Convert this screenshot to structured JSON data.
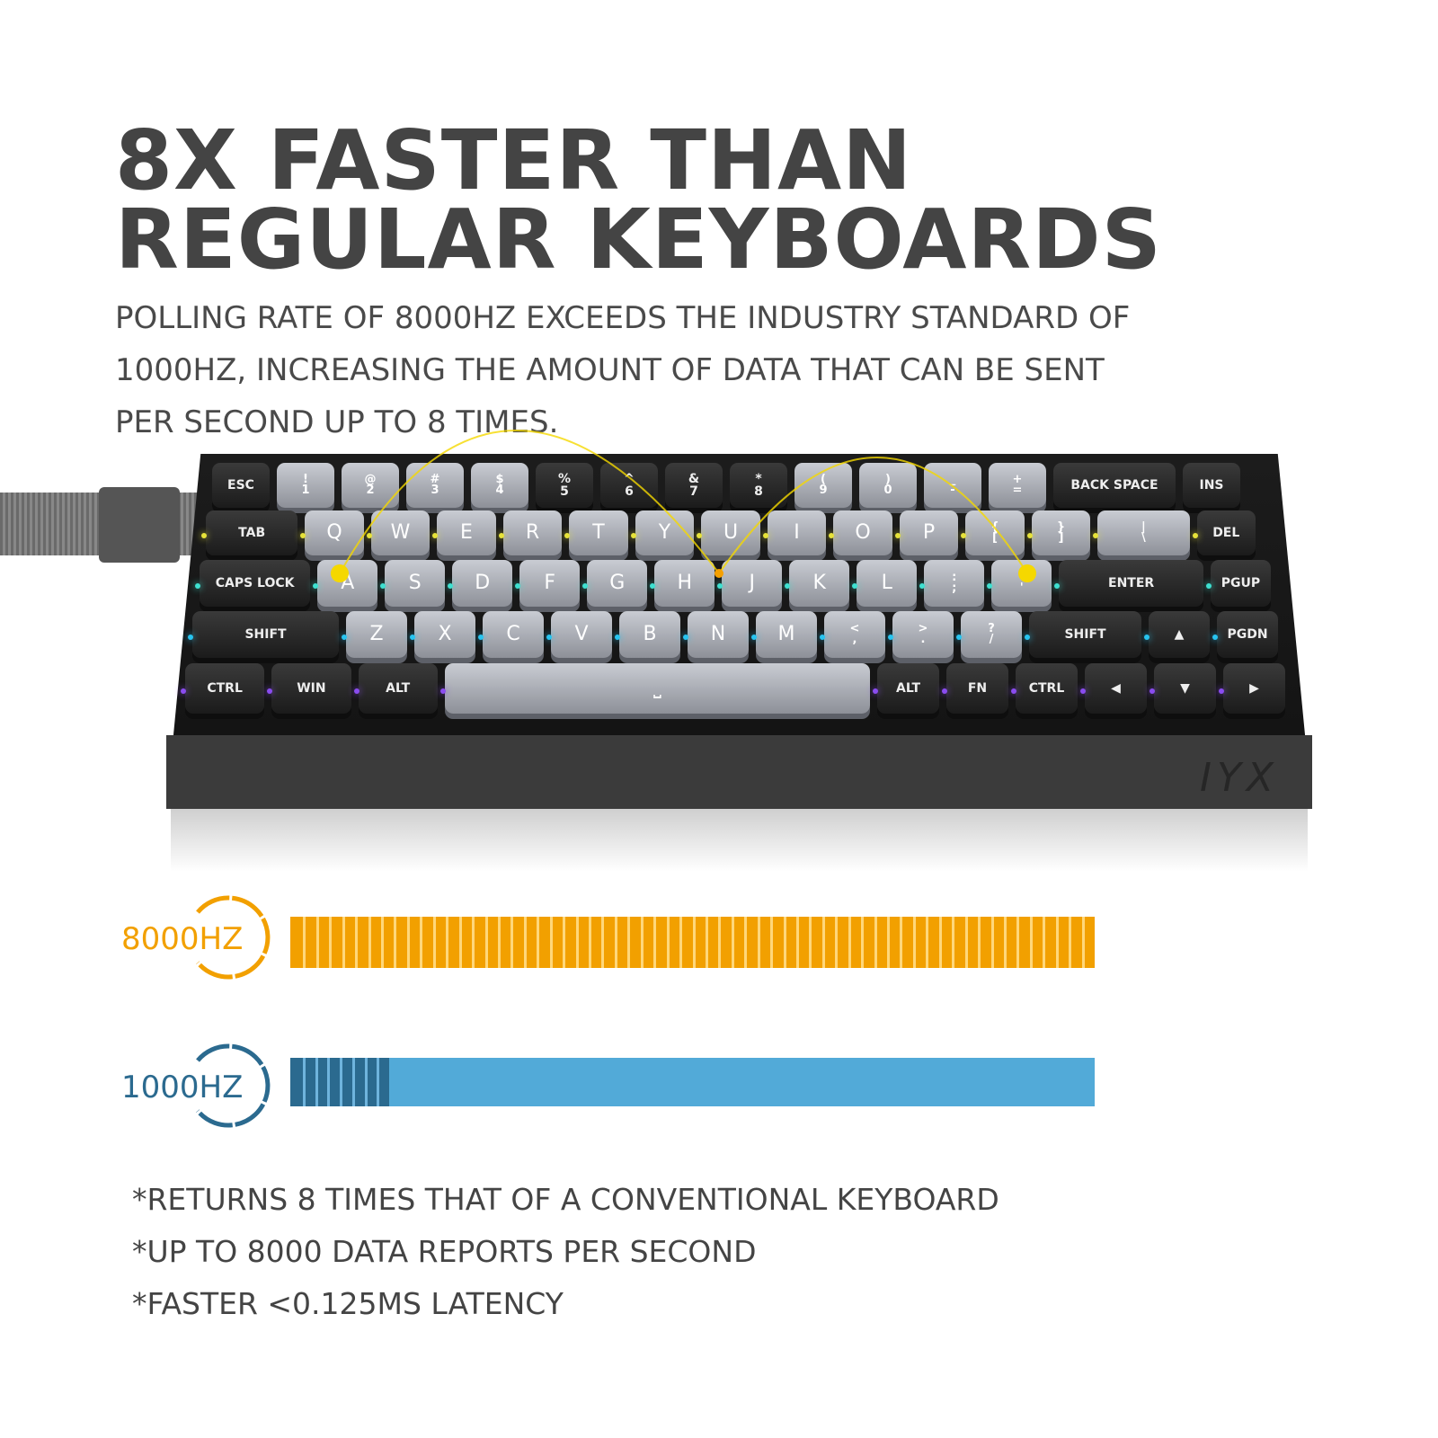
{
  "headline": {
    "line1": "8X FASTER THAN",
    "line2": "REGULAR KEYBOARDS"
  },
  "description": "POLLING RATE OF 8000HZ EXCEEDS THE INDUSTRY STANDARD OF 1000HZ, INCREASING THE AMOUNT OF DATA THAT CAN BE SENT PER SECOND UP TO 8 TIMES.",
  "keyboard": {
    "logo": "IYX",
    "rows": [
      [
        [
          "ESC",
          1,
          "dark"
        ],
        [
          "!\n1",
          1,
          "light"
        ],
        [
          "@\n2",
          1,
          "light"
        ],
        [
          "#\n3",
          1,
          "light"
        ],
        [
          "$\n4",
          1,
          "light"
        ],
        [
          "%\n5",
          1,
          "dark"
        ],
        [
          "^\n6",
          1,
          "dark"
        ],
        [
          "&\n7",
          1,
          "dark"
        ],
        [
          "*\n8",
          1,
          "dark"
        ],
        [
          "(\n9",
          1,
          "light"
        ],
        [
          ")\n0",
          1,
          "light"
        ],
        [
          "_\n-",
          1,
          "light"
        ],
        [
          "+\n=",
          1,
          "light"
        ],
        [
          "BACK SPACE",
          2,
          "dark"
        ],
        [
          "INS",
          1,
          "dark"
        ]
      ],
      [
        [
          "TAB",
          1.5,
          "dark"
        ],
        [
          "Q",
          1,
          "light"
        ],
        [
          "W",
          1,
          "light"
        ],
        [
          "E",
          1,
          "light"
        ],
        [
          "R",
          1,
          "light"
        ],
        [
          "T",
          1,
          "light"
        ],
        [
          "Y",
          1,
          "light"
        ],
        [
          "U",
          1,
          "light"
        ],
        [
          "I",
          1,
          "light"
        ],
        [
          "O",
          1,
          "light"
        ],
        [
          "P",
          1,
          "light"
        ],
        [
          "{\n[",
          1,
          "light"
        ],
        [
          "}\n]",
          1,
          "light"
        ],
        [
          "|\n\\",
          1.5,
          "light"
        ],
        [
          "DEL",
          1,
          "dark"
        ]
      ],
      [
        [
          "CAPS LOCK",
          1.75,
          "dark"
        ],
        [
          "A",
          1,
          "light"
        ],
        [
          "S",
          1,
          "light"
        ],
        [
          "D",
          1,
          "light"
        ],
        [
          "F",
          1,
          "light"
        ],
        [
          "G",
          1,
          "light"
        ],
        [
          "H",
          1,
          "light"
        ],
        [
          "J",
          1,
          "light"
        ],
        [
          "K",
          1,
          "light"
        ],
        [
          "L",
          1,
          "light"
        ],
        [
          ":\n;",
          1,
          "light"
        ],
        [
          "\"\n'",
          1,
          "light"
        ],
        [
          "ENTER",
          2.25,
          "dark"
        ],
        [
          "PGUP",
          1,
          "dark"
        ]
      ],
      [
        [
          "SHIFT",
          2.25,
          "dark"
        ],
        [
          "Z",
          1,
          "light"
        ],
        [
          "X",
          1,
          "light"
        ],
        [
          "C",
          1,
          "light"
        ],
        [
          "V",
          1,
          "light"
        ],
        [
          "B",
          1,
          "light"
        ],
        [
          "N",
          1,
          "light"
        ],
        [
          "M",
          1,
          "light"
        ],
        [
          "<\n,",
          1,
          "light"
        ],
        [
          ">\n.",
          1,
          "light"
        ],
        [
          "?\n/",
          1,
          "light"
        ],
        [
          "SHIFT",
          1.75,
          "dark"
        ],
        [
          "▲",
          1,
          "dark"
        ],
        [
          "PGDN",
          1,
          "dark"
        ]
      ],
      [
        [
          "CTRL",
          1.25,
          "dark"
        ],
        [
          "WIN",
          1.25,
          "dark"
        ],
        [
          "ALT",
          1.25,
          "dark"
        ],
        [
          "⎵",
          6.25,
          "light"
        ],
        [
          "ALT",
          1,
          "dark"
        ],
        [
          "FN",
          1,
          "dark"
        ],
        [
          "CTRL",
          1,
          "dark"
        ],
        [
          "◀",
          1,
          "dark"
        ],
        [
          "▼",
          1,
          "dark"
        ],
        [
          "▶",
          1,
          "dark"
        ]
      ]
    ]
  },
  "comparison": [
    {
      "label": "8000HZ",
      "rate_hz": 8000,
      "color": "#f2a000",
      "segments": 40
    },
    {
      "label": "1000HZ",
      "rate_hz": 1000,
      "color": "#2b6a8f",
      "fill_color": "#52aad8",
      "segments": 5
    }
  ],
  "notes": [
    "*RETURNS 8 TIMES THAT OF A CONVENTIONAL KEYBOARD",
    "*UP TO 8000 DATA REPORTS PER SECOND",
    "*FASTER <0.125MS LATENCY"
  ]
}
